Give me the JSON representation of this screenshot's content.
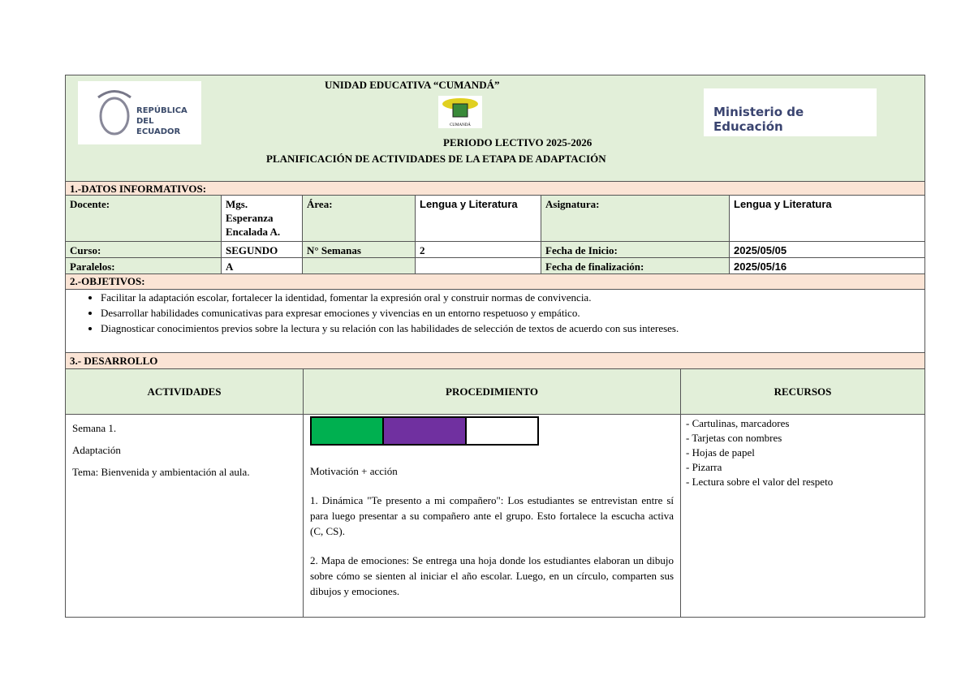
{
  "header": {
    "school": "UNIDAD EDUCATIVA “CUMANDÁ”",
    "period": "PERIODO LECTIVO 2025-2026",
    "title": "PLANIFICACIÓN DE ACTIVIDADES DE LA ETAPA DE ADAPTACIÓN",
    "logo_left": "REPÚBLICA DEL ECUADOR",
    "logo_right": "Ministerio de Educación",
    "logo_center": "CUMANDÁ"
  },
  "datos": {
    "section": "1.-DATOS INFORMATIVOS:",
    "docente_label": "Docente:",
    "docente": "Mgs. Esperanza Encalada A.",
    "area_label": "Área:",
    "area": "Lengua y Literatura",
    "asignatura_label": "Asignatura:",
    "asignatura": "Lengua y Literatura",
    "curso_label": "Curso:",
    "curso": "SEGUNDO",
    "semanas_label": "N° Semanas",
    "semanas": "2",
    "inicio_label": "Fecha de Inicio:",
    "inicio": "2025/05/05",
    "paralelos_label": "Paralelos:",
    "paralelo": "A",
    "fin_label": "Fecha de finalización:",
    "fin": "2025/05/16"
  },
  "objetivos": {
    "section": "2.-OBJETIVOS:",
    "items": [
      "Facilitar la adaptación escolar, fortalecer la identidad, fomentar la expresión oral y construir normas de convivencia.",
      "Desarrollar habilidades comunicativas para expresar emociones y vivencias en un entorno respetuoso y empático.",
      "Diagnosticar conocimientos previos sobre la lectura y su relación con las habilidades de selección de textos de acuerdo con sus intereses."
    ]
  },
  "desarrollo": {
    "section": "3.-  DESARROLLO",
    "headers": [
      "ACTIVIDADES",
      "PROCEDIMIENTO",
      "RECURSOS"
    ],
    "actividades": [
      "Semana 1.",
      "Adaptación",
      "Tema:  Bienvenida y ambientación al aula."
    ],
    "color_boxes": [
      "#00b050",
      "#7030a0",
      "#ffffff"
    ],
    "procedimiento": [
      "Motivación + acción",
      "1. Dinámica \"Te presento a mi compañero\": Los estudiantes se entrevistan entre sí para luego presentar a su compañero ante el grupo. Esto fortalece la escucha activa (C, CS).",
      "2. Mapa de emociones: Se entrega una hoja donde los estudiantes elaboran un dibujo sobre cómo se sienten al iniciar el año escolar. Luego, en un círculo, comparten sus dibujos y emociones."
    ],
    "recursos": [
      "- Cartulinas, marcadores",
      "- Tarjetas con nombres",
      "- Hojas de papel",
      "- Pizarra",
      "- Lectura sobre el valor del respeto"
    ]
  }
}
